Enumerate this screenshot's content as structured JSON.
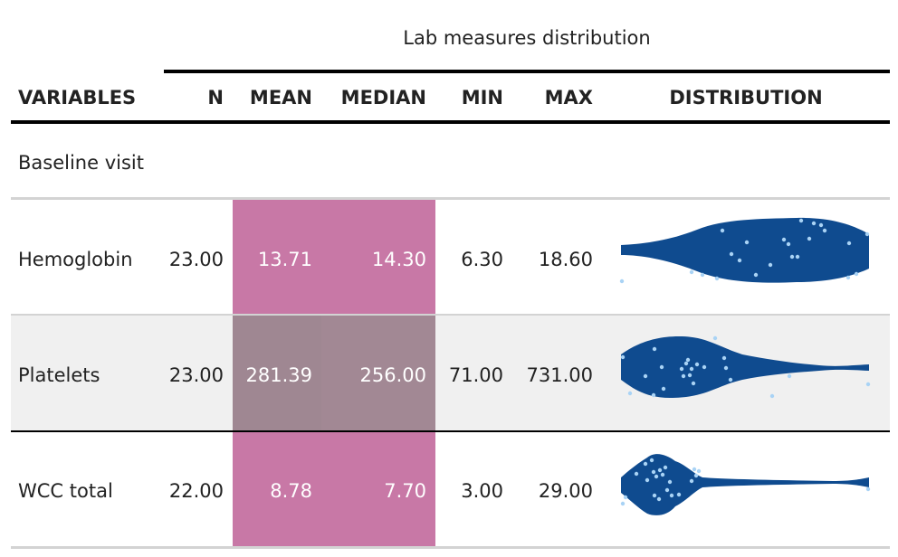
{
  "header": {
    "spanner": "Lab measures distribution",
    "columns": [
      "VARIABLES",
      "N",
      "MEAN",
      "MEDIAN",
      "MIN",
      "MAX",
      "DISTRIBUTION"
    ]
  },
  "group_label": "Baseline visit",
  "rows": [
    {
      "variable": "Hemoglobin",
      "n": "23.00",
      "mean": "13.71",
      "median": "14.30",
      "min": "6.30",
      "max": "18.60",
      "mean_color": "#c878a6",
      "median_color": "#c878a6",
      "row_bg": "#ffffff"
    },
    {
      "variable": "Platelets",
      "n": "23.00",
      "mean": "281.39",
      "median": "256.00",
      "min": "71.00",
      "max": "731.00",
      "mean_color": "#9f8792",
      "median_color": "#a28894",
      "row_bg": "#f0f0f0"
    },
    {
      "variable": "WCC total",
      "n": "22.00",
      "mean": "8.78",
      "median": "7.70",
      "min": "3.00",
      "max": "29.00",
      "mean_color": "#c878a6",
      "median_color": "#c878a6",
      "row_bg": "#ffffff"
    }
  ],
  "colors": {
    "violin": "#0f4b8f",
    "points": "#a9d3f5"
  }
}
